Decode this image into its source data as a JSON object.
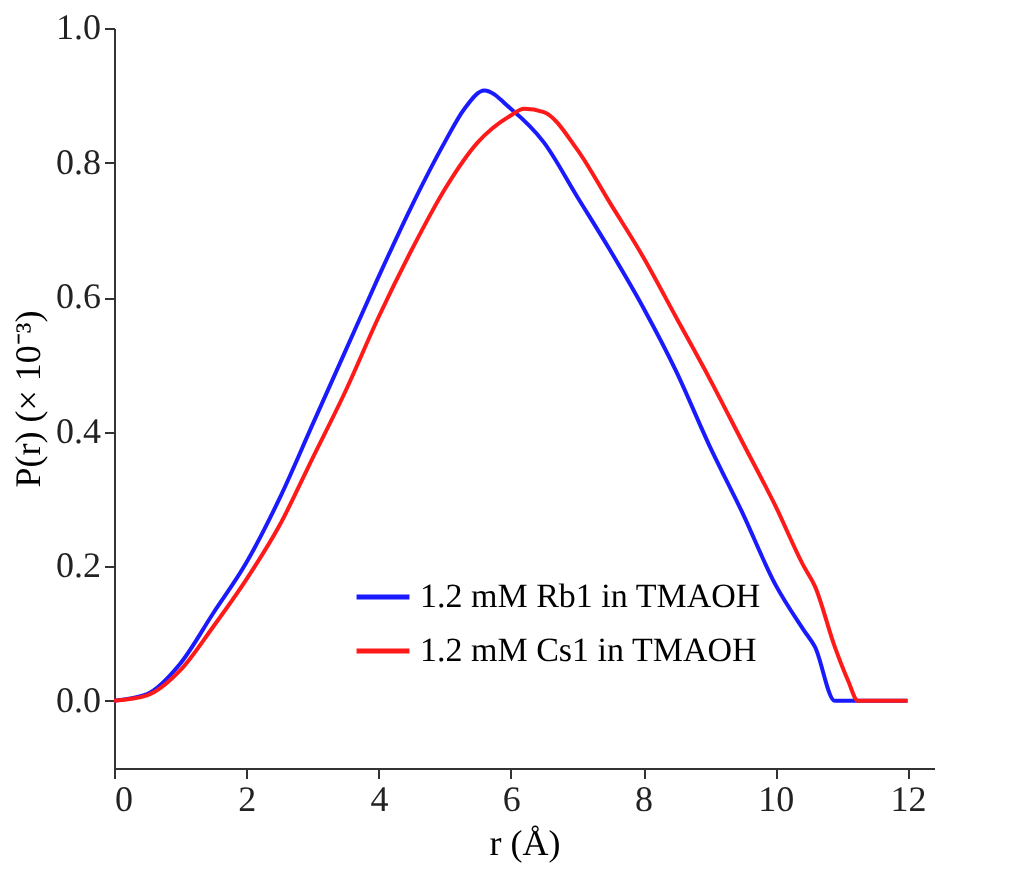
{
  "chart_data": {
    "type": "line",
    "xlabel": "r (Å)",
    "ylabel": "P(r) (× 10⁻³)",
    "xlim": [
      0,
      12.4
    ],
    "xticks": [
      0,
      2,
      4,
      6,
      8,
      10,
      12
    ],
    "ylim": [
      -0.1,
      1.0
    ],
    "yticks": [
      {
        "value": 0,
        "label": "0.0"
      },
      0.2,
      0.4,
      0.6,
      0.8,
      {
        "value": 1,
        "label": "1.0"
      }
    ],
    "grid": false,
    "legend": "bottom",
    "line_style": "solid",
    "marker": "none",
    "series": [
      {
        "name": "1.2 mM Rb1 in TMAOH",
        "color": "#1a1aff",
        "x": [
          0,
          0.5,
          1,
          1.5,
          2,
          2.5,
          3,
          3.5,
          4,
          4.5,
          5,
          5.3,
          5.6,
          6,
          6.5,
          7,
          7.5,
          8,
          8.5,
          9,
          9.5,
          10,
          10.43,
          10.6,
          10.9,
          11.2,
          12
        ],
        "values": [
          0,
          0.01,
          0.055,
          0.13,
          0.205,
          0.3,
          0.41,
          0.52,
          0.63,
          0.735,
          0.83,
          0.88,
          0.907,
          0.88,
          0.83,
          0.75,
          0.67,
          0.585,
          0.49,
          0.38,
          0.28,
          0.173,
          0.105,
          0.08,
          0,
          0,
          0
        ]
      },
      {
        "name": "1.2 mM Cs1 in TMAOH",
        "color": "#ff1a1a",
        "x": [
          0,
          0.5,
          1,
          1.5,
          2,
          2.5,
          3,
          3.5,
          4,
          4.5,
          5,
          5.5,
          6,
          6.2,
          6.5,
          7,
          7.5,
          8,
          8.5,
          9,
          9.5,
          10,
          10.43,
          10.6,
          10.9,
          11.1,
          11.25,
          12
        ],
        "values": [
          0,
          0.008,
          0.045,
          0.11,
          0.18,
          0.26,
          0.36,
          0.46,
          0.57,
          0.67,
          0.76,
          0.83,
          0.87,
          0.88,
          0.875,
          0.82,
          0.74,
          0.66,
          0.57,
          0.48,
          0.385,
          0.29,
          0.2,
          0.17,
          0.08,
          0.03,
          0,
          0
        ]
      }
    ]
  }
}
